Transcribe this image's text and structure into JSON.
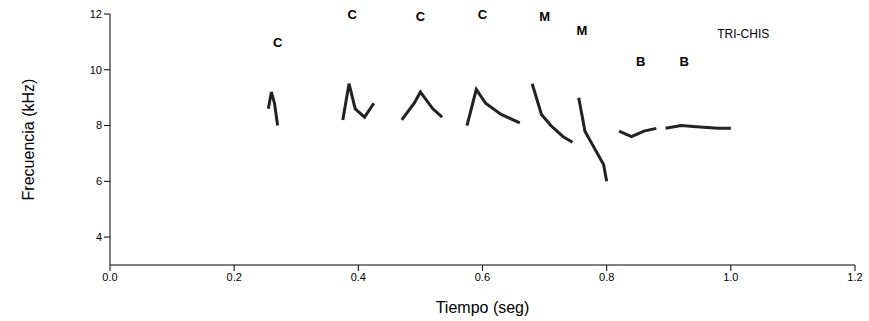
{
  "chart_data": {
    "type": "line",
    "title": "TRI-CHIS",
    "x_label": "Tiempo (seg)",
    "y_label": "Frecuencia (kHz)",
    "xlim": [
      0,
      1.2
    ],
    "ylim": [
      3,
      12
    ],
    "xticks": [
      {
        "value": 0,
        "label": "0.0"
      },
      {
        "value": 0.2,
        "label": "0.2"
      },
      {
        "value": 0.4,
        "label": "0.4"
      },
      {
        "value": 0.6,
        "label": "0.6"
      },
      {
        "value": 0.8,
        "label": "0.8"
      },
      {
        "value": 1,
        "label": "1.0"
      },
      {
        "value": 1.2,
        "label": "1.2"
      }
    ],
    "yticks": [
      4,
      6,
      8,
      10,
      12
    ],
    "grid": false,
    "color": "#222222",
    "line_style": "solid",
    "series": [
      {
        "x": [
          0.255,
          0.26,
          0.265,
          0.27
        ],
        "values": [
          8.6,
          9.2,
          8.8,
          8.0
        ]
      },
      {
        "x": [
          0.375,
          0.385,
          0.395,
          0.41,
          0.425
        ],
        "values": [
          8.2,
          9.5,
          8.6,
          8.3,
          8.8
        ]
      },
      {
        "x": [
          0.47,
          0.49,
          0.5,
          0.52,
          0.535
        ],
        "values": [
          8.2,
          8.8,
          9.2,
          8.6,
          8.3
        ]
      },
      {
        "x": [
          0.575,
          0.59,
          0.605,
          0.63,
          0.66
        ],
        "values": [
          8.0,
          9.3,
          8.8,
          8.4,
          8.1
        ]
      },
      {
        "x": [
          0.68,
          0.695,
          0.71,
          0.73,
          0.745
        ],
        "values": [
          9.5,
          8.4,
          8.0,
          7.6,
          7.4
        ]
      },
      {
        "x": [
          0.755,
          0.765,
          0.78,
          0.795,
          0.8
        ],
        "values": [
          9.0,
          7.8,
          7.2,
          6.6,
          6.0
        ]
      },
      {
        "x": [
          0.82,
          0.84,
          0.86,
          0.88
        ],
        "values": [
          7.8,
          7.6,
          7.8,
          7.9
        ]
      },
      {
        "x": [
          0.895,
          0.92,
          0.95,
          0.98,
          1.0
        ],
        "values": [
          7.9,
          8.0,
          7.95,
          7.9,
          7.9
        ]
      }
    ],
    "annotations": [
      {
        "text": "C",
        "x": 0.27,
        "y": 11
      },
      {
        "text": "C",
        "x": 0.39,
        "y": 12
      },
      {
        "text": "C",
        "x": 0.5,
        "y": 11.9
      },
      {
        "text": "C",
        "x": 0.6,
        "y": 12
      },
      {
        "text": "M",
        "x": 0.7,
        "y": 11.9
      },
      {
        "text": "M",
        "x": 0.76,
        "y": 11.4
      },
      {
        "text": "B",
        "x": 0.855,
        "y": 10.3
      },
      {
        "text": "B",
        "x": 0.925,
        "y": 10.3
      }
    ]
  }
}
